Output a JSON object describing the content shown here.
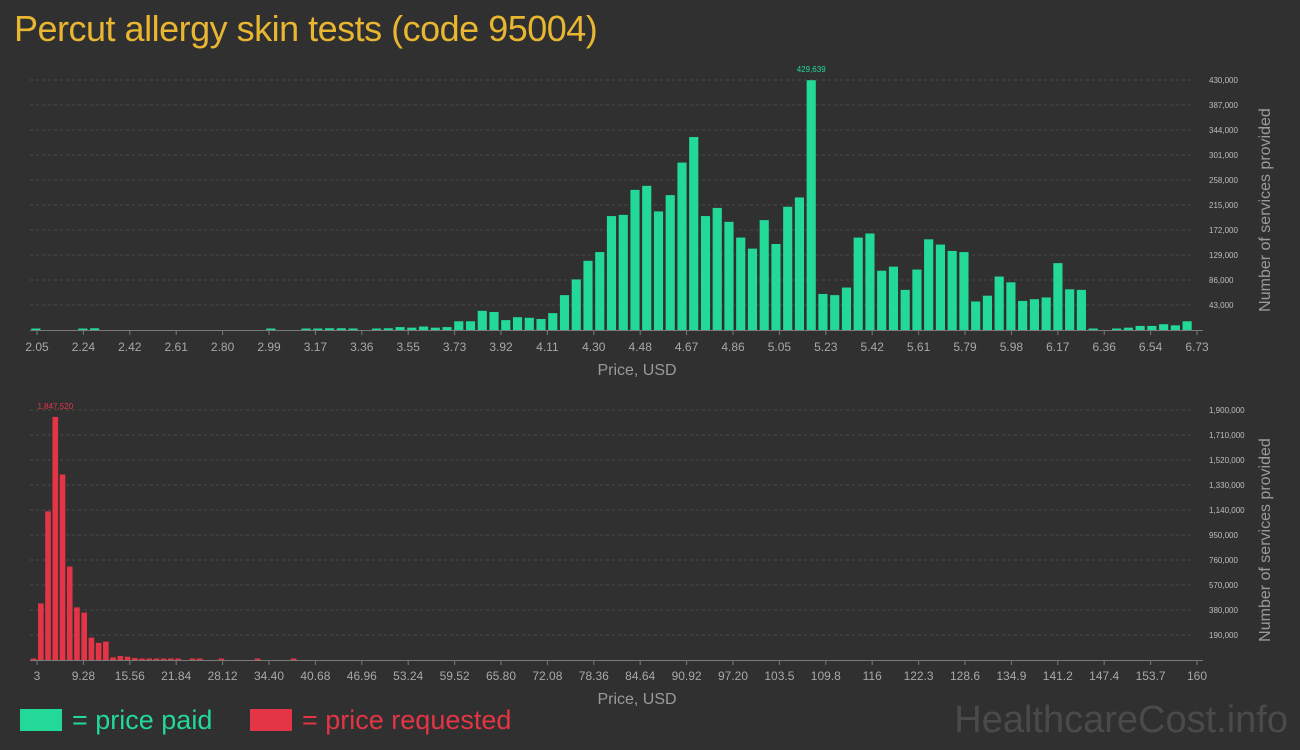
{
  "title": "Percut allergy skin tests (code 95004)",
  "legend": {
    "paid": "= price paid",
    "requested": "= price requested"
  },
  "watermark": "HealthcareCost.info",
  "colors": {
    "paid": "#22d997",
    "requested": "#e33545",
    "title": "#e8b630"
  },
  "chart_data": [
    {
      "type": "bar",
      "name": "price-paid",
      "xlabel": "Price, USD",
      "ylabel": "Number of services provided",
      "x_ticks": [
        "2.05",
        "2.24",
        "2.42",
        "2.61",
        "2.80",
        "2.99",
        "3.17",
        "3.36",
        "3.55",
        "3.73",
        "3.92",
        "4.11",
        "4.30",
        "4.48",
        "4.67",
        "4.86",
        "5.05",
        "5.23",
        "5.42",
        "5.61",
        "5.79",
        "5.98",
        "6.17",
        "6.36",
        "6.54",
        "6.73"
      ],
      "y_ticks": [
        "43,000",
        "86,000",
        "129,000",
        "172,000",
        "215,000",
        "258,000",
        "301,000",
        "344,000",
        "387,000",
        "430,000"
      ],
      "y_tick_values": [
        43000,
        86000,
        129000,
        172000,
        215000,
        258000,
        301000,
        344000,
        387000,
        430000
      ],
      "ylim": [
        0,
        430000
      ],
      "peak_label": "429,639",
      "peak_index": 66,
      "values": [
        2000,
        0,
        0,
        0,
        1500,
        3000,
        0,
        0,
        0,
        0,
        0,
        0,
        0,
        0,
        0,
        0,
        0,
        0,
        0,
        0,
        1500,
        0,
        0,
        2000,
        2000,
        3000,
        3000,
        1500,
        0,
        1500,
        3000,
        5000,
        4000,
        6000,
        4000,
        5000,
        15000,
        15000,
        33000,
        31000,
        17000,
        22000,
        21000,
        19000,
        29000,
        60000,
        87000,
        119000,
        134000,
        196000,
        198000,
        241000,
        248000,
        204000,
        232000,
        288000,
        332000,
        196000,
        210000,
        186000,
        159000,
        140000,
        189000,
        148000,
        212000,
        228000,
        429639,
        62000,
        60000,
        73000,
        159000,
        166000,
        102000,
        109000,
        69000,
        104000,
        156000,
        147000,
        136000,
        134000,
        49000,
        59000,
        92000,
        82000,
        50000,
        53000,
        56000,
        115000,
        70000,
        69000,
        2000,
        0,
        1500,
        4000,
        7000,
        7000,
        10000,
        8000,
        15000
      ]
    },
    {
      "type": "bar",
      "name": "price-requested",
      "xlabel": "Price, USD",
      "ylabel": "Number of services provided",
      "x_ticks": [
        "3",
        "9.28",
        "15.56",
        "21.84",
        "28.12",
        "34.40",
        "40.68",
        "46.96",
        "53.24",
        "59.52",
        "65.80",
        "72.08",
        "78.36",
        "84.64",
        "90.92",
        "97.20",
        "103.5",
        "109.8",
        "116",
        "122.3",
        "128.6",
        "134.9",
        "141.2",
        "147.4",
        "153.7",
        "160"
      ],
      "y_ticks": [
        "190,000",
        "380,000",
        "570,000",
        "760,000",
        "950,000",
        "1,140,000",
        "1,330,000",
        "1,520,000",
        "1,710,000",
        "1,900,000"
      ],
      "y_tick_values": [
        190000,
        380000,
        570000,
        760000,
        950000,
        1140000,
        1330000,
        1520000,
        1710000,
        1900000
      ],
      "ylim": [
        0,
        1900000
      ],
      "peak_label": "1,847,520",
      "peak_index": 3,
      "values": [
        10000,
        430000,
        1130000,
        1847520,
        1410000,
        710000,
        400000,
        360000,
        170000,
        130000,
        140000,
        20000,
        30000,
        25000,
        15000,
        6000,
        8000,
        6000,
        4000,
        3000,
        2000,
        0,
        3000,
        3000,
        0,
        0,
        2000,
        0,
        0,
        0,
        0,
        6000,
        0,
        0,
        0,
        0,
        5000,
        0,
        0,
        0,
        0,
        0,
        0,
        0,
        0,
        0,
        0,
        0,
        0,
        0,
        0,
        0,
        0,
        0,
        0,
        0,
        0,
        0,
        0,
        0,
        0,
        0,
        0,
        0,
        0,
        0,
        0,
        0,
        0,
        0,
        0,
        0,
        0,
        0,
        0,
        0,
        0,
        0,
        0,
        0,
        0,
        0,
        0,
        0,
        0,
        0,
        0,
        0,
        0,
        0,
        0,
        0,
        0,
        0,
        0,
        0,
        0,
        0,
        0,
        0,
        0,
        0,
        0,
        0,
        0,
        0,
        0,
        0,
        0,
        0,
        0,
        0,
        0,
        0,
        0,
        0,
        0,
        0,
        0,
        0,
        0,
        0,
        0,
        0,
        0,
        0,
        0,
        0,
        0,
        0,
        0,
        0,
        0,
        0,
        0,
        0,
        0,
        0,
        0,
        0,
        0,
        0,
        0,
        0,
        0,
        0,
        0,
        0,
        0,
        0,
        0,
        0,
        0,
        0,
        0,
        0,
        0,
        0,
        0,
        0,
        0
      ]
    }
  ]
}
